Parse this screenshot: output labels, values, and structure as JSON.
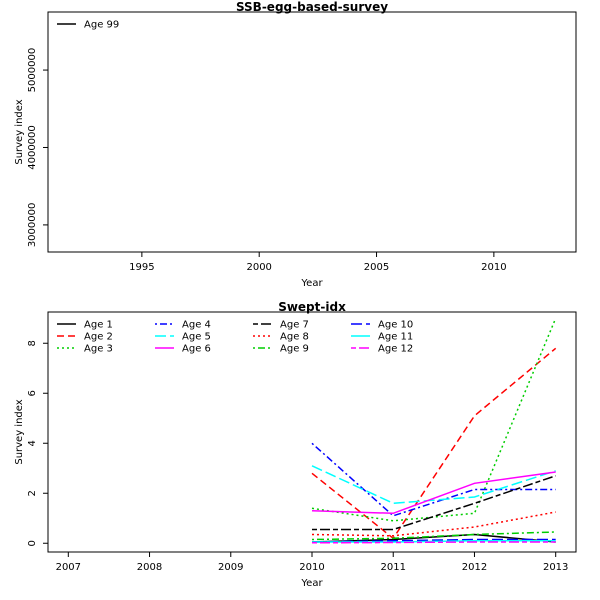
{
  "chart_data": [
    {
      "type": "line",
      "title": "SSB-egg-based-survey",
      "xlabel": "Year",
      "ylabel": "Survey index",
      "xlim": [
        1991,
        2013.5
      ],
      "ylim": [
        2650000,
        5750000
      ],
      "x_ticks": [
        1995,
        2000,
        2005,
        2010
      ],
      "x_tick_labels": [
        "1995",
        "2000",
        "2005",
        "2010"
      ],
      "y_ticks": [
        3000000,
        4000000,
        5000000
      ],
      "y_tick_labels": [
        "3000000",
        "4000000",
        "5000000"
      ],
      "legend_position": "top-left",
      "legend_columns": 1,
      "series": [
        {
          "name": "Age 99",
          "color": "#000000",
          "dash": "solid",
          "x": [],
          "y": []
        }
      ]
    },
    {
      "type": "line",
      "title": "Swept-idx",
      "xlabel": "Year",
      "ylabel": "Survey index",
      "xlim": [
        2006.75,
        2013.25
      ],
      "ylim": [
        -0.35,
        9.25
      ],
      "x_ticks": [
        2007,
        2008,
        2009,
        2010,
        2011,
        2012,
        2013
      ],
      "x_tick_labels": [
        "2007",
        "2008",
        "2009",
        "2010",
        "2011",
        "2012",
        "2013"
      ],
      "y_ticks": [
        0,
        2,
        4,
        6,
        8
      ],
      "y_tick_labels": [
        "0",
        "2",
        "4",
        "6",
        "8"
      ],
      "legend_position": "top-left",
      "legend_columns": 4,
      "series": [
        {
          "name": "Age 1",
          "color": "#000000",
          "dash": "solid",
          "x": [
            2010,
            2011,
            2012,
            2013
          ],
          "y": [
            0.05,
            0.15,
            0.35,
            0.05
          ]
        },
        {
          "name": "Age 2",
          "color": "#ff0000",
          "dash": "dashed",
          "x": [
            2010,
            2011,
            2012,
            2013
          ],
          "y": [
            2.8,
            0.2,
            5.1,
            7.8
          ]
        },
        {
          "name": "Age 3",
          "color": "#00cd00",
          "dash": "dotted",
          "x": [
            2010,
            2011,
            2012,
            2013
          ],
          "y": [
            1.4,
            0.9,
            1.2,
            9.0
          ]
        },
        {
          "name": "Age 4",
          "color": "#0000ff",
          "dash": "dotdash",
          "x": [
            2010,
            2011,
            2012,
            2013
          ],
          "y": [
            4.0,
            1.1,
            2.15,
            2.15
          ]
        },
        {
          "name": "Age 5",
          "color": "#00ffff",
          "dash": "longdash",
          "x": [
            2010,
            2011,
            2012,
            2013
          ],
          "y": [
            3.1,
            1.6,
            1.85,
            2.9
          ]
        },
        {
          "name": "Age 6",
          "color": "#ff00ff",
          "dash": "solid",
          "x": [
            2010,
            2011,
            2012,
            2013
          ],
          "y": [
            1.3,
            1.2,
            2.4,
            2.85
          ]
        },
        {
          "name": "Age 7",
          "color": "#000000",
          "dash": "twodash",
          "x": [
            2010,
            2011,
            2012,
            2013
          ],
          "y": [
            0.55,
            0.55,
            1.6,
            2.7
          ]
        },
        {
          "name": "Age 8",
          "color": "#ff0000",
          "dash": "dotted",
          "x": [
            2010,
            2011,
            2012,
            2013
          ],
          "y": [
            0.35,
            0.3,
            0.65,
            1.25
          ]
        },
        {
          "name": "Age 9",
          "color": "#00cd00",
          "dash": "dotdash",
          "x": [
            2010,
            2011,
            2012,
            2013
          ],
          "y": [
            0.15,
            0.2,
            0.35,
            0.45
          ]
        },
        {
          "name": "Age 10",
          "color": "#0000ff",
          "dash": "longdash",
          "x": [
            2010,
            2011,
            2012,
            2013
          ],
          "y": [
            0.05,
            0.1,
            0.15,
            0.15
          ]
        },
        {
          "name": "Age 11",
          "color": "#00ffff",
          "dash": "solid",
          "x": [
            2010,
            2011,
            2012,
            2013
          ],
          "y": [
            0.05,
            0.05,
            0.1,
            0.1
          ]
        },
        {
          "name": "Age 12",
          "color": "#ff00ff",
          "dash": "twodash",
          "x": [
            2010,
            2011,
            2012,
            2013
          ],
          "y": [
            0.02,
            0.03,
            0.05,
            0.05
          ]
        }
      ]
    }
  ]
}
